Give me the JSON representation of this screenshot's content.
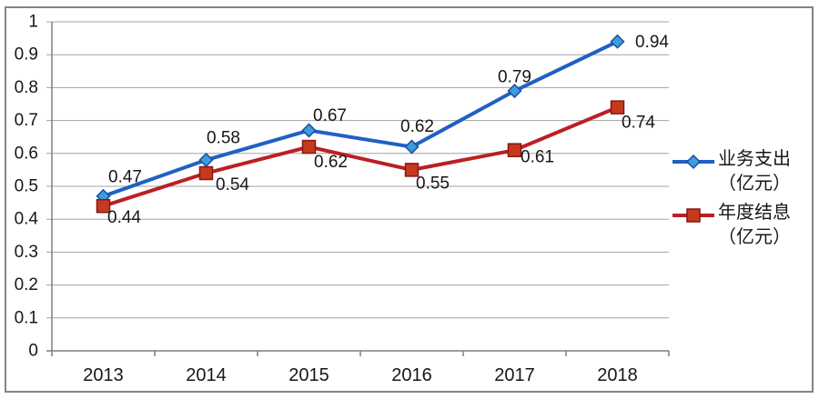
{
  "chart_data": {
    "type": "line",
    "title": "",
    "categories": [
      "2013",
      "2014",
      "2015",
      "2016",
      "2017",
      "2018"
    ],
    "series": [
      {
        "name": "业务支出（亿元）",
        "legend_lines": [
          "业务支出",
          "（亿元）"
        ],
        "values": [
          0.47,
          0.58,
          0.67,
          0.62,
          0.79,
          0.94
        ],
        "labels": [
          "0.47",
          "0.58",
          "0.67",
          "0.62",
          "0.79",
          "0.94"
        ],
        "line_color": "#2060C4",
        "marker": "diamond",
        "marker_fill": "#3C9CDC",
        "marker_stroke": "#1D4E9B"
      },
      {
        "name": "年度结息（亿元）",
        "legend_lines": [
          "年度结息",
          "（亿元）"
        ],
        "values": [
          0.44,
          0.54,
          0.62,
          0.55,
          0.61,
          0.74
        ],
        "labels": [
          "0.44",
          "0.54",
          "0.62",
          "0.55",
          "0.61",
          "0.74"
        ],
        "line_color": "#BB1F24",
        "marker": "square",
        "marker_fill": "#C5391E",
        "marker_stroke": "#871710"
      }
    ],
    "y_axis": {
      "min": 0,
      "max": 1,
      "tick_labels": [
        "0",
        "0.1",
        "0.2",
        "0.3",
        "0.4",
        "0.5",
        "0.6",
        "0.7",
        "0.8",
        "0.9",
        "1"
      ]
    },
    "x_axis": {
      "label": ""
    },
    "grid": true,
    "legend_position": "right",
    "grid_color": "#A3A3A3",
    "axis_color": "#7F7F7F",
    "frame_color": "#848484",
    "text_color": "#171717"
  }
}
